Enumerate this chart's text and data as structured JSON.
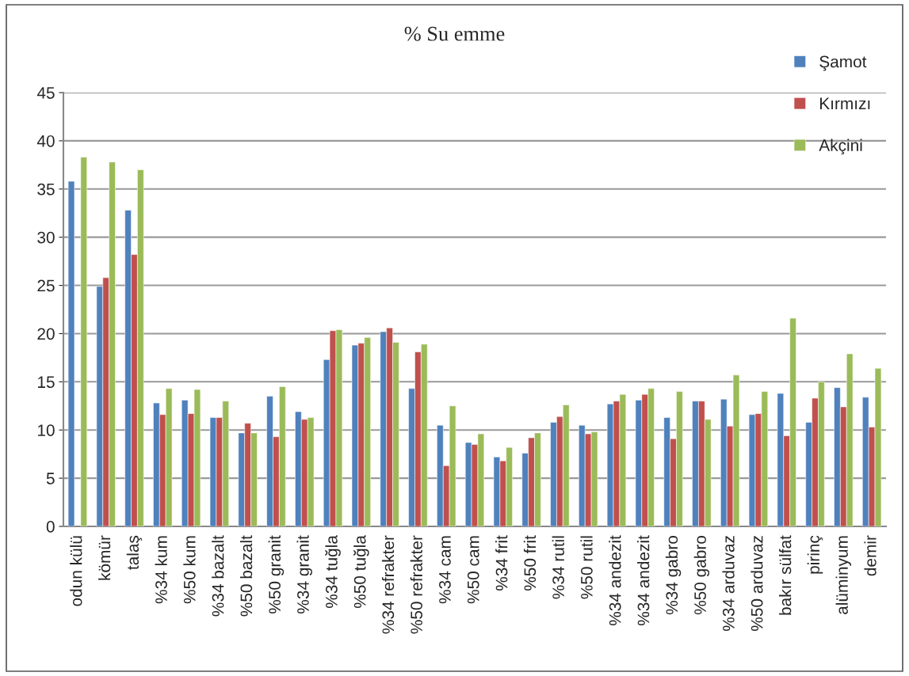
{
  "chart_data": {
    "type": "bar",
    "title": "% Su emme",
    "categories": [
      "odun külü",
      "kömür",
      "talaş",
      "%34 kum",
      "%50 kum",
      "%34 bazalt",
      "%50 bazalt",
      "%50 granit",
      "%34 granit",
      "%34 tuğla",
      "%50 tuğla",
      "%34 refrakter",
      "%50 refrakter",
      "%34 cam",
      "%50 cam",
      "%34 frit",
      "%50 frit",
      "%34 rutil",
      "%50 rutil",
      "%34 andezit",
      "%34 andezit",
      "%34 gabro",
      "%50 gabro",
      "%34 arduvaz",
      "%50 arduvaz",
      "bakır sülfat",
      "pirinç",
      "alüminyum",
      "demir"
    ],
    "series": [
      {
        "name": "Şamot",
        "color": "#4f81bd",
        "values": [
          35.8,
          24.9,
          32.8,
          12.8,
          13.1,
          11.3,
          9.7,
          13.5,
          11.9,
          17.3,
          18.8,
          20.2,
          14.3,
          10.5,
          8.7,
          7.2,
          7.6,
          10.8,
          10.5,
          12.7,
          13.1,
          11.3,
          13.0,
          13.2,
          11.6,
          13.8,
          10.8,
          14.4,
          13.4
        ]
      },
      {
        "name": "Kırmızı",
        "color": "#c0504d",
        "values": [
          null,
          25.8,
          28.2,
          11.6,
          11.7,
          11.3,
          10.7,
          9.3,
          11.1,
          20.3,
          19.0,
          20.6,
          18.1,
          6.3,
          8.5,
          6.8,
          9.2,
          11.4,
          9.6,
          13.0,
          13.7,
          9.1,
          13.0,
          10.4,
          11.7,
          9.4,
          13.3,
          12.4,
          10.3
        ]
      },
      {
        "name": "Akçini",
        "color": "#9bbb59",
        "values": [
          38.3,
          37.8,
          37.0,
          14.3,
          14.2,
          13.0,
          9.7,
          14.5,
          11.3,
          20.4,
          19.6,
          19.1,
          18.9,
          12.5,
          9.6,
          8.2,
          9.7,
          12.6,
          9.8,
          13.7,
          14.3,
          14.0,
          11.1,
          15.7,
          14.0,
          21.6,
          15.0,
          17.9,
          16.4
        ]
      }
    ],
    "ylim": [
      0,
      45
    ],
    "yticks": [
      0,
      5,
      10,
      15,
      20,
      25,
      30,
      35,
      40,
      45
    ],
    "grid": "y",
    "legend": "top right"
  }
}
